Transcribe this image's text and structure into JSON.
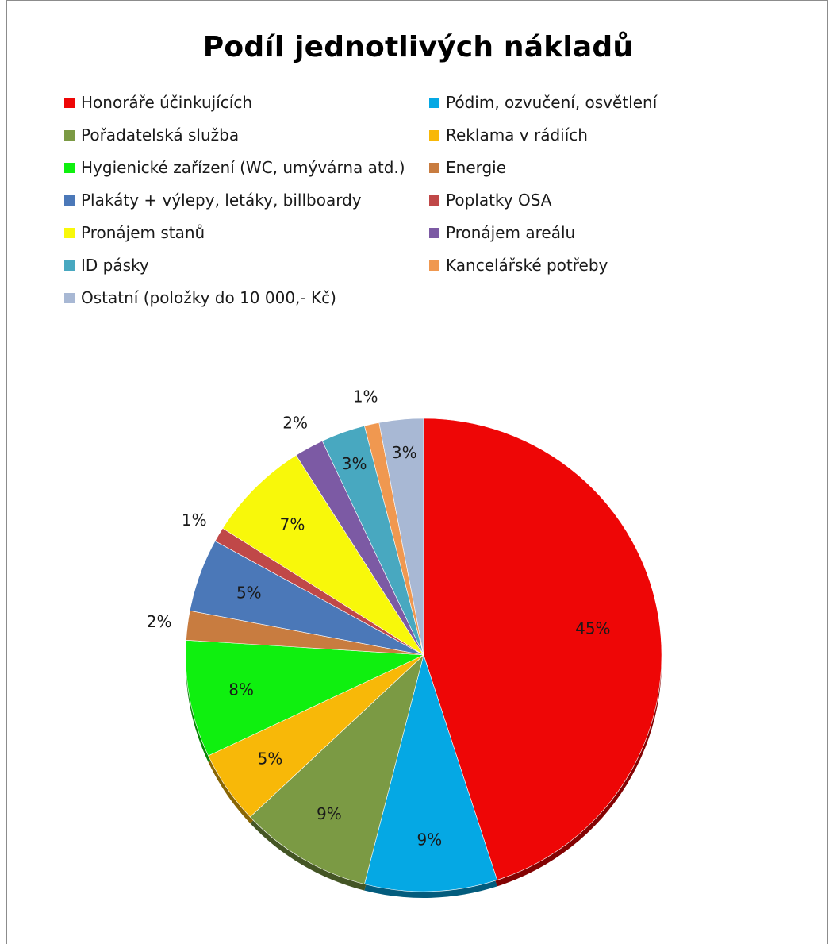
{
  "chart_data": {
    "type": "pie",
    "title": "Podíl jednotlivých nákladů",
    "legend_position": "top",
    "categories": [
      "Honoráře účinkujících",
      "Pódim, ozvučení, osvětlení",
      "Pořadatelská služba",
      "Reklama v rádiích",
      "Hygienické zařízení (WC, umývárna atd.)",
      "Energie",
      "Plakáty + výlepy, letáky, billboardy",
      "Poplatky OSA",
      "Pronájem stanů",
      "Pronájem areálu",
      "ID pásky",
      "Kancelářské potřeby",
      "Ostatní (položky do 10 000,- Kč)"
    ],
    "values": [
      45,
      9,
      9,
      5,
      8,
      2,
      5,
      1,
      7,
      2,
      3,
      1,
      3
    ],
    "labels": [
      "45%",
      "9%",
      "9%",
      "5%",
      "8%",
      "2%",
      "5%",
      "1%",
      "7%",
      "2%",
      "3%",
      "1%",
      "3%"
    ],
    "colors": [
      "#ee0606",
      "#05a8e4",
      "#7b9a44",
      "#f8b808",
      "#0ff00f",
      "#c87c40",
      "#4b78b8",
      "#c04848",
      "#f8f80a",
      "#7c5aa4",
      "#48a8c0",
      "#f09850",
      "#a8b8d4"
    ]
  }
}
